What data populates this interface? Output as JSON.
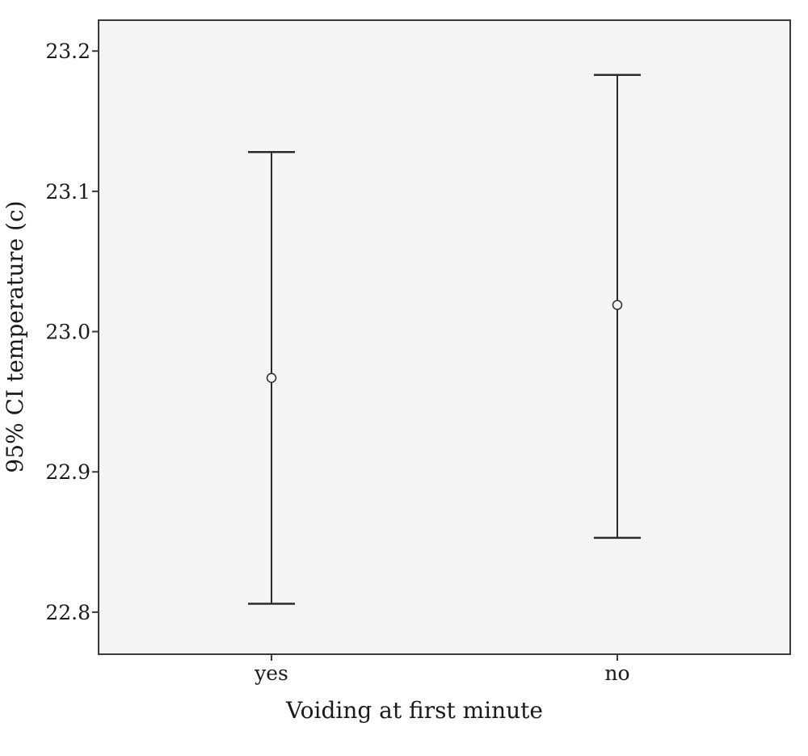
{
  "chart_data": {
    "type": "errorbar",
    "title": "",
    "xlabel": "Voiding at first minute",
    "ylabel": "95% CI temperature (c)",
    "categories": [
      "yes",
      "no"
    ],
    "series": [
      {
        "means": [
          22.967,
          23.019
        ],
        "lower": [
          22.806,
          22.853
        ],
        "upper": [
          23.128,
          23.183
        ]
      }
    ],
    "ylim": [
      22.77,
      23.222
    ],
    "yticks": [
      "22.8",
      "22.9",
      "23.0",
      "23.1",
      "23.2"
    ],
    "grid": false,
    "plot_background": "#f3f4f3",
    "frame_color": "#3a3a3a",
    "mark_color": "#2b2b2b"
  }
}
